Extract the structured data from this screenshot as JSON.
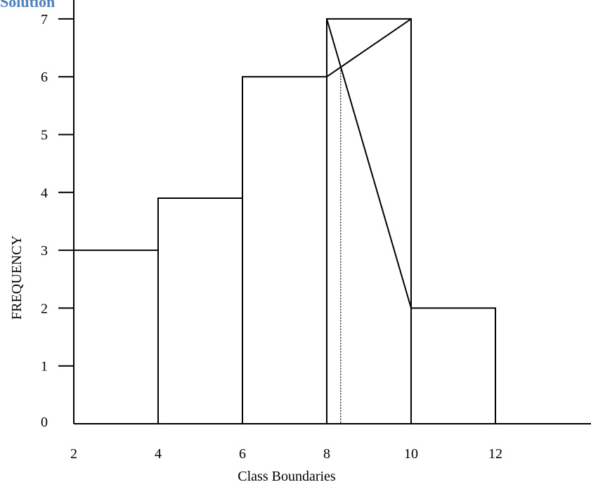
{
  "heading": "Solution",
  "chart_data": {
    "type": "bar",
    "title": "",
    "xlabel": "Class Boundaries",
    "ylabel": "FREQUENCY",
    "x_ticks": [
      2,
      4,
      6,
      8,
      10,
      12
    ],
    "y_ticks": [
      0,
      1,
      2,
      3,
      4,
      5,
      6,
      7
    ],
    "xlim": [
      2,
      14
    ],
    "ylim": [
      0,
      7
    ],
    "bins": [
      {
        "from": 2,
        "to": 4,
        "value": 3
      },
      {
        "from": 4,
        "to": 6,
        "value": 3.9
      },
      {
        "from": 6,
        "to": 8,
        "value": 6
      },
      {
        "from": 8,
        "to": 10,
        "value": 7
      },
      {
        "from": 10,
        "to": 12,
        "value": 2
      }
    ],
    "mode_construction": {
      "lines": [
        {
          "from": [
            8,
            6
          ],
          "to": [
            10,
            7
          ]
        },
        {
          "from": [
            8,
            7
          ],
          "to": [
            10,
            2
          ]
        }
      ],
      "mode_x": 8.33
    },
    "colors": {
      "bars": "#000000",
      "heading": "#4f81bd"
    }
  }
}
